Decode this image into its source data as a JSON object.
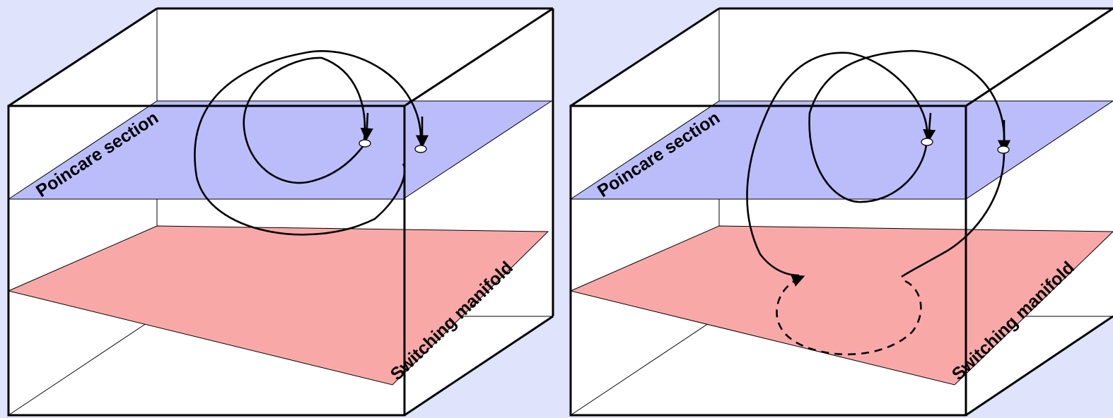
{
  "panels": [
    {
      "poincare_label": "Poincare section",
      "switching_label": "Switching manifold"
    },
    {
      "poincare_label": "Poincare section",
      "switching_label": "Switching manifold"
    }
  ],
  "colors": {
    "background": "#dfe3fb",
    "poincare_plane": "#bbbdfb",
    "switching_plane": "#f9a8a8",
    "box_face": "#ffffff",
    "line": "#000000"
  }
}
